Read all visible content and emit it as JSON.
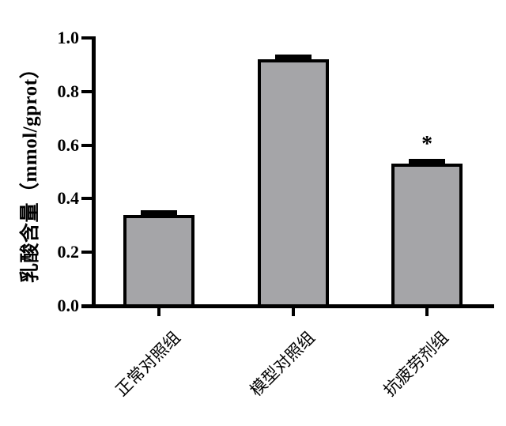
{
  "chart_data": {
    "type": "bar",
    "title": "",
    "xlabel": "",
    "ylabel": "乳酸含量（mmol/gprot）",
    "categories": [
      "正常对照组",
      "模型对照组",
      "抗疲劳剂组"
    ],
    "values": [
      0.34,
      0.92,
      0.53
    ],
    "errors": [
      0.012,
      0.012,
      0.012
    ],
    "annotations": [
      {
        "category_index": 2,
        "text": "*"
      }
    ],
    "ylim": [
      0.0,
      1.0
    ],
    "yticks": [
      0.0,
      0.2,
      0.4,
      0.6,
      0.8,
      1.0
    ],
    "ytick_labels": [
      "0.0",
      "0.2",
      "0.4",
      "0.6",
      "0.8",
      "1.0"
    ],
    "grid": false,
    "legend": null,
    "colors": {
      "bar_fill": "#a5a5a8",
      "bar_border": "#000000",
      "axis": "#000000",
      "background": "#ffffff",
      "text": "#000000"
    }
  }
}
